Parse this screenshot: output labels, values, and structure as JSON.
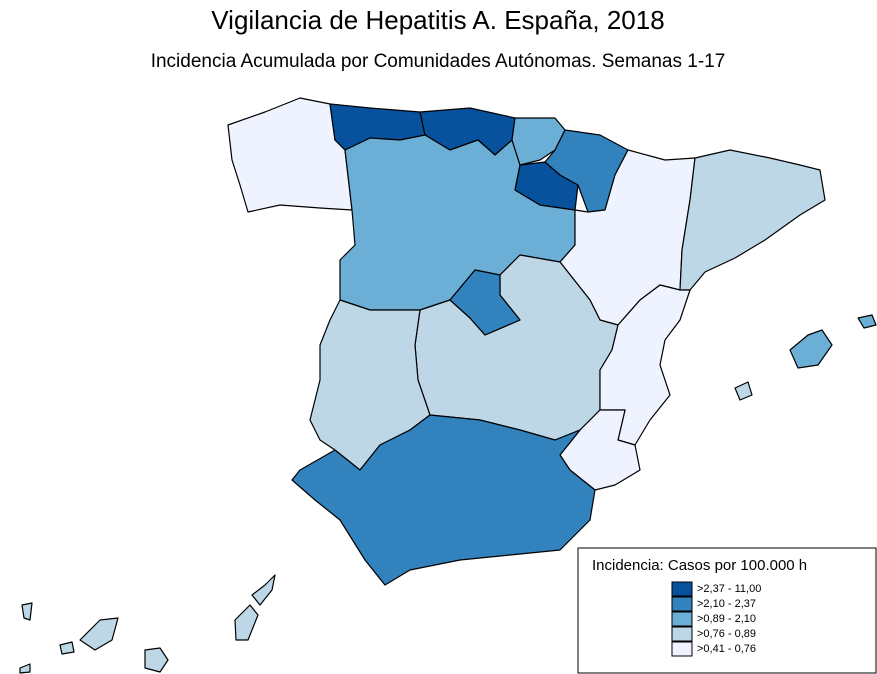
{
  "header": {
    "title": "Vigilancia de Hepatitis A. España, 2018",
    "subtitle": "Incidencia Acumulada por Comunidades Autónomas. Semanas 1-17"
  },
  "legend": {
    "title": "Incidencia: Casos por 100.000 h",
    "items": [
      {
        "label": ">2,37 - 11,00",
        "color": "#08519c"
      },
      {
        "label": ">2,10 - 2,37",
        "color": "#3182bd"
      },
      {
        "label": ">0,89 - 2,10",
        "color": "#6baed6"
      },
      {
        "label": ">0,76 - 0,89",
        "color": "#bdd7e7"
      },
      {
        "label": ">0,41 - 0,76",
        "color": "#eff3ff"
      }
    ]
  }
}
